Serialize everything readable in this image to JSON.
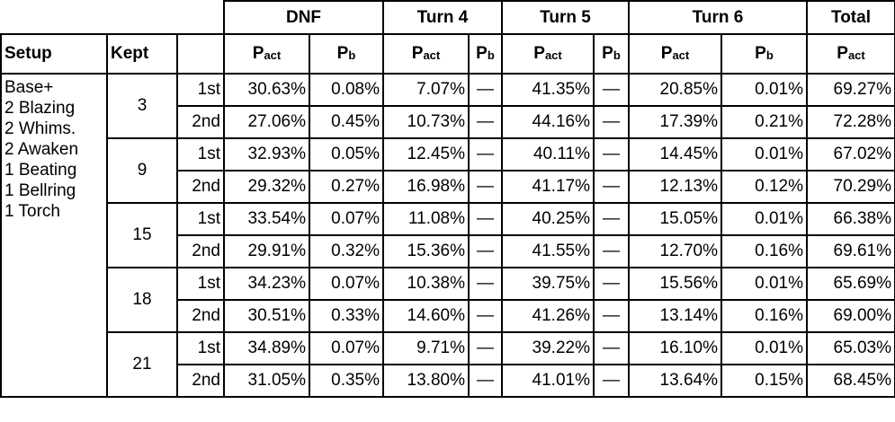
{
  "header": {
    "groups": [
      "DNF",
      "Turn 4",
      "Turn 5",
      "Turn 6",
      "Total"
    ],
    "setup_label": "Setup",
    "kept_label": "Kept",
    "p_symbol": "P",
    "sub_act": "act",
    "sub_b": "b"
  },
  "setup_lines": [
    "Base+",
    "2 Blazing",
    "2 Whims.",
    "2 Awaken",
    "1 Beating",
    "1 Bellring",
    "1 Torch"
  ],
  "dash": "—",
  "rows": [
    {
      "kept": "3",
      "ord": "1st",
      "dnf_act": "30.63%",
      "dnf_b": "0.08%",
      "t4_act": "7.07%",
      "t5_act": "41.35%",
      "t6_act": "20.85%",
      "t6_b": "0.01%",
      "total_act": "69.27%"
    },
    {
      "kept": "",
      "ord": "2nd",
      "dnf_act": "27.06%",
      "dnf_b": "0.45%",
      "t4_act": "10.73%",
      "t5_act": "44.16%",
      "t6_act": "17.39%",
      "t6_b": "0.21%",
      "total_act": "72.28%"
    },
    {
      "kept": "9",
      "ord": "1st",
      "dnf_act": "32.93%",
      "dnf_b": "0.05%",
      "t4_act": "12.45%",
      "t5_act": "40.11%",
      "t6_act": "14.45%",
      "t6_b": "0.01%",
      "total_act": "67.02%"
    },
    {
      "kept": "",
      "ord": "2nd",
      "dnf_act": "29.32%",
      "dnf_b": "0.27%",
      "t4_act": "16.98%",
      "t5_act": "41.17%",
      "t6_act": "12.13%",
      "t6_b": "0.12%",
      "total_act": "70.29%"
    },
    {
      "kept": "15",
      "ord": "1st",
      "dnf_act": "33.54%",
      "dnf_b": "0.07%",
      "t4_act": "11.08%",
      "t5_act": "40.25%",
      "t6_act": "15.05%",
      "t6_b": "0.01%",
      "total_act": "66.38%"
    },
    {
      "kept": "",
      "ord": "2nd",
      "dnf_act": "29.91%",
      "dnf_b": "0.32%",
      "t4_act": "15.36%",
      "t5_act": "41.55%",
      "t6_act": "12.70%",
      "t6_b": "0.16%",
      "total_act": "69.61%"
    },
    {
      "kept": "18",
      "ord": "1st",
      "dnf_act": "34.23%",
      "dnf_b": "0.07%",
      "t4_act": "10.38%",
      "t5_act": "39.75%",
      "t6_act": "15.56%",
      "t6_b": "0.01%",
      "total_act": "65.69%"
    },
    {
      "kept": "",
      "ord": "2nd",
      "dnf_act": "30.51%",
      "dnf_b": "0.33%",
      "t4_act": "14.60%",
      "t5_act": "41.26%",
      "t6_act": "13.14%",
      "t6_b": "0.16%",
      "total_act": "69.00%"
    },
    {
      "kept": "21",
      "ord": "1st",
      "dnf_act": "34.89%",
      "dnf_b": "0.07%",
      "t4_act": "9.71%",
      "t5_act": "39.22%",
      "t6_act": "16.10%",
      "t6_b": "0.01%",
      "total_act": "65.03%"
    },
    {
      "kept": "",
      "ord": "2nd",
      "dnf_act": "31.05%",
      "dnf_b": "0.35%",
      "t4_act": "13.80%",
      "t5_act": "41.01%",
      "t6_act": "13.64%",
      "t6_b": "0.15%",
      "total_act": "68.45%"
    }
  ]
}
